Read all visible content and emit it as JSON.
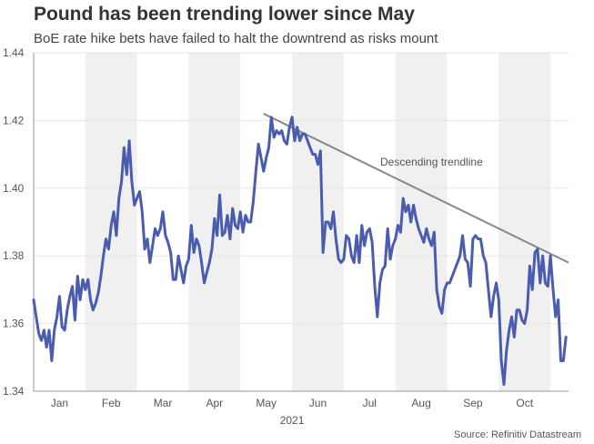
{
  "title": "Pound has been trending lower since May",
  "subtitle": "BoE rate hike bets have failed to halt the downtrend as risks mount",
  "source": "Source: Refinitiv Datastream",
  "colors": {
    "line": "#4a5cb0",
    "trend": "#888888",
    "band": "#f0f0f0",
    "grid": "#e6e6e6"
  },
  "chart_data": {
    "type": "line",
    "title": "Pound has been trending lower since May",
    "subtitle": "BoE rate hike bets have failed to halt the downtrend as risks mount",
    "xlabel": "2021",
    "ylabel": "",
    "ylim": [
      1.34,
      1.44
    ],
    "yticks": [
      "1.34",
      "1.36",
      "1.38",
      "1.40",
      "1.42",
      "1.44"
    ],
    "xlim": [
      0,
      10.35
    ],
    "categories": [
      "Jan",
      "Feb",
      "Mar",
      "Apr",
      "May",
      "Jun",
      "Jul",
      "Aug",
      "Sep",
      "Oct"
    ],
    "shaded_months": [
      "Feb",
      "Apr",
      "Jun",
      "Aug",
      "Oct"
    ],
    "grid": true,
    "legend": "none",
    "series": [
      {
        "values": [
          [
            0.0,
            1.367
          ],
          [
            0.05,
            1.362
          ],
          [
            0.1,
            1.357
          ],
          [
            0.15,
            1.355
          ],
          [
            0.2,
            1.358
          ],
          [
            0.25,
            1.353
          ],
          [
            0.3,
            1.358
          ],
          [
            0.35,
            1.349
          ],
          [
            0.4,
            1.358
          ],
          [
            0.45,
            1.362
          ],
          [
            0.5,
            1.368
          ],
          [
            0.55,
            1.359
          ],
          [
            0.6,
            1.358
          ],
          [
            0.65,
            1.364
          ],
          [
            0.7,
            1.368
          ],
          [
            0.75,
            1.371
          ],
          [
            0.8,
            1.361
          ],
          [
            0.85,
            1.374
          ],
          [
            0.9,
            1.367
          ],
          [
            0.95,
            1.373
          ],
          [
            1.0,
            1.37
          ],
          [
            1.05,
            1.373
          ],
          [
            1.1,
            1.367
          ],
          [
            1.15,
            1.364
          ],
          [
            1.2,
            1.366
          ],
          [
            1.25,
            1.369
          ],
          [
            1.3,
            1.374
          ],
          [
            1.35,
            1.38
          ],
          [
            1.4,
            1.385
          ],
          [
            1.45,
            1.382
          ],
          [
            1.5,
            1.389
          ],
          [
            1.55,
            1.393
          ],
          [
            1.6,
            1.386
          ],
          [
            1.65,
            1.397
          ],
          [
            1.7,
            1.402
          ],
          [
            1.75,
            1.412
          ],
          [
            1.8,
            1.404
          ],
          [
            1.85,
            1.414
          ],
          [
            1.9,
            1.402
          ],
          [
            1.95,
            1.395
          ],
          [
            2.0,
            1.397
          ],
          [
            2.05,
            1.399
          ],
          [
            2.1,
            1.393
          ],
          [
            2.15,
            1.382
          ],
          [
            2.2,
            1.385
          ],
          [
            2.25,
            1.378
          ],
          [
            2.3,
            1.383
          ],
          [
            2.35,
            1.388
          ],
          [
            2.4,
            1.386
          ],
          [
            2.45,
            1.388
          ],
          [
            2.5,
            1.393
          ],
          [
            2.55,
            1.386
          ],
          [
            2.6,
            1.384
          ],
          [
            2.65,
            1.381
          ],
          [
            2.7,
            1.373
          ],
          [
            2.75,
            1.373
          ],
          [
            2.8,
            1.38
          ],
          [
            2.85,
            1.376
          ],
          [
            2.9,
            1.372
          ],
          [
            2.95,
            1.377
          ],
          [
            3.0,
            1.379
          ],
          [
            3.05,
            1.389
          ],
          [
            3.1,
            1.381
          ],
          [
            3.15,
            1.385
          ],
          [
            3.2,
            1.383
          ],
          [
            3.25,
            1.378
          ],
          [
            3.3,
            1.372
          ],
          [
            3.35,
            1.375
          ],
          [
            3.4,
            1.378
          ],
          [
            3.45,
            1.382
          ],
          [
            3.5,
            1.391
          ],
          [
            3.55,
            1.386
          ],
          [
            3.6,
            1.398
          ],
          [
            3.65,
            1.386
          ],
          [
            3.7,
            1.387
          ],
          [
            3.75,
            1.392
          ],
          [
            3.8,
            1.385
          ],
          [
            3.85,
            1.394
          ],
          [
            3.9,
            1.389
          ],
          [
            3.95,
            1.388
          ],
          [
            4.0,
            1.393
          ],
          [
            4.05,
            1.387
          ],
          [
            4.1,
            1.392
          ],
          [
            4.15,
            1.39
          ],
          [
            4.2,
            1.39
          ],
          [
            4.25,
            1.396
          ],
          [
            4.3,
            1.405
          ],
          [
            4.35,
            1.413
          ],
          [
            4.4,
            1.409
          ],
          [
            4.45,
            1.405
          ],
          [
            4.5,
            1.409
          ],
          [
            4.55,
            1.412
          ],
          [
            4.6,
            1.421
          ],
          [
            4.65,
            1.415
          ],
          [
            4.7,
            1.417
          ],
          [
            4.75,
            1.416
          ],
          [
            4.8,
            1.417
          ],
          [
            4.85,
            1.414
          ],
          [
            4.9,
            1.413
          ],
          [
            4.95,
            1.418
          ],
          [
            5.0,
            1.421
          ],
          [
            5.05,
            1.414
          ],
          [
            5.1,
            1.418
          ],
          [
            5.15,
            1.414
          ],
          [
            5.2,
            1.416
          ],
          [
            5.25,
            1.416
          ],
          [
            5.3,
            1.414
          ],
          [
            5.35,
            1.412
          ],
          [
            5.4,
            1.41
          ],
          [
            5.45,
            1.41
          ],
          [
            5.5,
            1.407
          ],
          [
            5.55,
            1.411
          ],
          [
            5.6,
            1.381
          ],
          [
            5.65,
            1.39
          ],
          [
            5.7,
            1.39
          ],
          [
            5.75,
            1.388
          ],
          [
            5.8,
            1.393
          ],
          [
            5.85,
            1.385
          ],
          [
            5.9,
            1.379
          ],
          [
            5.95,
            1.378
          ],
          [
            6.0,
            1.379
          ],
          [
            6.05,
            1.386
          ],
          [
            6.1,
            1.385
          ],
          [
            6.15,
            1.38
          ],
          [
            6.2,
            1.378
          ],
          [
            6.25,
            1.386
          ],
          [
            6.3,
            1.378
          ],
          [
            6.35,
            1.389
          ],
          [
            6.4,
            1.383
          ],
          [
            6.45,
            1.387
          ],
          [
            6.5,
            1.388
          ],
          [
            6.55,
            1.384
          ],
          [
            6.6,
            1.371
          ],
          [
            6.65,
            1.362
          ],
          [
            6.7,
            1.372
          ],
          [
            6.75,
            1.376
          ],
          [
            6.8,
            1.377
          ],
          [
            6.85,
            1.388
          ],
          [
            6.9,
            1.379
          ],
          [
            6.95,
            1.383
          ],
          [
            7.0,
            1.385
          ],
          [
            7.05,
            1.389
          ],
          [
            7.1,
            1.387
          ],
          [
            7.15,
            1.397
          ],
          [
            7.2,
            1.393
          ],
          [
            7.25,
            1.395
          ],
          [
            7.3,
            1.39
          ],
          [
            7.35,
            1.395
          ],
          [
            7.4,
            1.391
          ],
          [
            7.45,
            1.388
          ],
          [
            7.5,
            1.386
          ],
          [
            7.55,
            1.384
          ],
          [
            7.6,
            1.388
          ],
          [
            7.65,
            1.385
          ],
          [
            7.7,
            1.383
          ],
          [
            7.75,
            1.387
          ],
          [
            7.8,
            1.37
          ],
          [
            7.85,
            1.365
          ],
          [
            7.9,
            1.363
          ],
          [
            7.95,
            1.37
          ],
          [
            8.0,
            1.372
          ],
          [
            8.05,
            1.372
          ],
          [
            8.1,
            1.374
          ],
          [
            8.15,
            1.376
          ],
          [
            8.2,
            1.378
          ],
          [
            8.25,
            1.38
          ],
          [
            8.3,
            1.386
          ],
          [
            8.35,
            1.379
          ],
          [
            8.4,
            1.378
          ],
          [
            8.45,
            1.371
          ],
          [
            8.5,
            1.385
          ],
          [
            8.55,
            1.386
          ],
          [
            8.6,
            1.385
          ],
          [
            8.65,
            1.385
          ],
          [
            8.7,
            1.38
          ],
          [
            8.75,
            1.378
          ],
          [
            8.8,
            1.37
          ],
          [
            8.85,
            1.362
          ],
          [
            8.9,
            1.368
          ],
          [
            8.95,
            1.372
          ],
          [
            9.0,
            1.367
          ],
          [
            9.05,
            1.349
          ],
          [
            9.1,
            1.342
          ],
          [
            9.15,
            1.352
          ],
          [
            9.2,
            1.358
          ],
          [
            9.25,
            1.362
          ],
          [
            9.3,
            1.356
          ],
          [
            9.35,
            1.364
          ],
          [
            9.4,
            1.364
          ],
          [
            9.45,
            1.361
          ],
          [
            9.5,
            1.36
          ],
          [
            9.55,
            1.364
          ],
          [
            9.6,
            1.377
          ],
          [
            9.65,
            1.37
          ],
          [
            9.7,
            1.381
          ],
          [
            9.75,
            1.382
          ],
          [
            9.8,
            1.372
          ],
          [
            9.85,
            1.38
          ],
          [
            9.9,
            1.372
          ],
          [
            9.95,
            1.371
          ],
          [
            10.0,
            1.38
          ],
          [
            10.05,
            1.37
          ],
          [
            10.1,
            1.362
          ],
          [
            10.15,
            1.367
          ],
          [
            10.2,
            1.349
          ],
          [
            10.25,
            1.349
          ],
          [
            10.3,
            1.356
          ]
        ]
      }
    ],
    "annotations": [
      {
        "type": "trendline",
        "label": "Descending trendline",
        "from": [
          4.45,
          1.422
        ],
        "to": [
          10.35,
          1.378
        ]
      }
    ]
  }
}
